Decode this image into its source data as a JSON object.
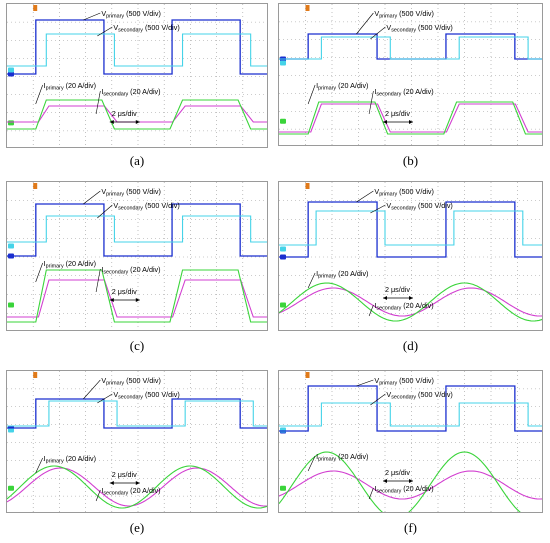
{
  "figure": {
    "panels": [
      {
        "id": "a",
        "caption": "(a)",
        "vp_label": {
          "main": "V",
          "sub": "primary",
          "suffix": " (500 V/div)"
        },
        "vs_label": {
          "main": "V",
          "sub": "secondary",
          "suffix": " (500 V/div)"
        },
        "ip_label": {
          "main": "I",
          "sub": "primary",
          "suffix": " (20 A/div)"
        },
        "is_label": {
          "main": "I",
          "sub": "secondary",
          "suffix": " (20 A/div)"
        },
        "timebase": "2 μs/div"
      },
      {
        "id": "b",
        "caption": "(b)",
        "vp_label": {
          "main": "V",
          "sub": "primary",
          "suffix": " (500 V/div)"
        },
        "vs_label": {
          "main": "V",
          "sub": "secondary",
          "suffix": " (500 V/div)"
        },
        "ip_label": {
          "main": "I",
          "sub": "primary",
          "suffix": " (20 A/div)"
        },
        "is_label": {
          "main": "I",
          "sub": "secondary",
          "suffix": " (20 A/div)"
        },
        "timebase": "2 μs/div"
      },
      {
        "id": "c",
        "caption": "(c)",
        "vp_label": {
          "main": "V",
          "sub": "primary",
          "suffix": " (500 V/div)"
        },
        "vs_label": {
          "main": "V",
          "sub": "secondary",
          "suffix": " (500 V/div)"
        },
        "ip_label": {
          "main": "I",
          "sub": "primary",
          "suffix": " (20 A/div)"
        },
        "is_label": {
          "main": "I",
          "sub": "secondary",
          "suffix": " (20 A/div)"
        },
        "timebase": "2 μs/div"
      },
      {
        "id": "d",
        "caption": "(d)",
        "vp_label": {
          "main": "V",
          "sub": "primary",
          "suffix": " (500 V/div)"
        },
        "vs_label": {
          "main": "V",
          "sub": "secondary",
          "suffix": " (500 V/div)"
        },
        "ip_label": {
          "main": "I",
          "sub": "primary",
          "suffix": " (20 A/div)"
        },
        "is_label": {
          "main": "I",
          "sub": "secondary",
          "suffix": " (20 A/div)"
        },
        "timebase": "2 μs/div"
      },
      {
        "id": "e",
        "caption": "(e)",
        "vp_label": {
          "main": "V",
          "sub": "primary",
          "suffix": " (500 V/div)"
        },
        "vs_label": {
          "main": "V",
          "sub": "secondary",
          "suffix": " (500 V/div)"
        },
        "ip_label": {
          "main": "I",
          "sub": "primary",
          "suffix": " (20 A/div)"
        },
        "is_label": {
          "main": "I",
          "sub": "secondary",
          "suffix": " (20 A/div)"
        },
        "timebase": "2 μs/div"
      },
      {
        "id": "f",
        "caption": "(f)",
        "vp_label": {
          "main": "V",
          "sub": "primary",
          "suffix": " (500 V/div)"
        },
        "vs_label": {
          "main": "V",
          "sub": "secondary",
          "suffix": " (500 V/div)"
        },
        "ip_label": {
          "main": "I",
          "sub": "primary",
          "suffix": " (20 A/div)"
        },
        "is_label": {
          "main": "I",
          "sub": "secondary",
          "suffix": " (20 A/div)"
        },
        "timebase": "2 μs/div"
      }
    ]
  },
  "colors": {
    "v_primary": "#1a2fcf",
    "v_secondary": "#45d3e8",
    "i_primary": "#d23fd0",
    "i_secondary": "#3ad43a",
    "grid": "#9a9a9a",
    "border": "#8c8c8c"
  },
  "chart_data": [
    {
      "type": "line",
      "panel": "a",
      "x_divisions": 10,
      "y_divisions": 8,
      "grid": true,
      "series": [
        {
          "name": "Vprimary",
          "unit_per_div": "500 V/div"
        },
        {
          "name": "Vsecondary",
          "unit_per_div": "500 V/div"
        },
        {
          "name": "Iprimary",
          "unit_per_div": "20 A/div"
        },
        {
          "name": "Isecondary",
          "unit_per_div": "20 A/div"
        }
      ],
      "current_shape": "trapezoid"
    },
    {
      "type": "line",
      "panel": "b",
      "x_divisions": 10,
      "y_divisions": 8,
      "grid": true,
      "series": [
        {
          "name": "Vprimary",
          "unit_per_div": "500 V/div"
        },
        {
          "name": "Vsecondary",
          "unit_per_div": "500 V/div"
        },
        {
          "name": "Iprimary",
          "unit_per_div": "20 A/div"
        },
        {
          "name": "Isecondary",
          "unit_per_div": "20 A/div"
        }
      ],
      "current_shape": "trapezoid"
    },
    {
      "type": "line",
      "panel": "c",
      "x_divisions": 10,
      "y_divisions": 8,
      "grid": true,
      "series": [
        {
          "name": "Vprimary",
          "unit_per_div": "500 V/div"
        },
        {
          "name": "Vsecondary",
          "unit_per_div": "500 V/div"
        },
        {
          "name": "Iprimary",
          "unit_per_div": "20 A/div"
        },
        {
          "name": "Isecondary",
          "unit_per_div": "20 A/div"
        }
      ],
      "current_shape": "trapezoid"
    },
    {
      "type": "line",
      "panel": "d",
      "x_divisions": 10,
      "y_divisions": 8,
      "grid": true,
      "series": [
        {
          "name": "Vprimary",
          "unit_per_div": "500 V/div"
        },
        {
          "name": "Vsecondary",
          "unit_per_div": "500 V/div"
        },
        {
          "name": "Iprimary",
          "unit_per_div": "20 A/div"
        },
        {
          "name": "Isecondary",
          "unit_per_div": "20 A/div"
        }
      ],
      "current_shape": "sinusoid"
    },
    {
      "type": "line",
      "panel": "e",
      "x_divisions": 10,
      "y_divisions": 8,
      "grid": true,
      "series": [
        {
          "name": "Vprimary",
          "unit_per_div": "500 V/div"
        },
        {
          "name": "Vsecondary",
          "unit_per_div": "500 V/div"
        },
        {
          "name": "Iprimary",
          "unit_per_div": "20 A/div"
        },
        {
          "name": "Isecondary",
          "unit_per_div": "20 A/div"
        }
      ],
      "current_shape": "sinusoid"
    },
    {
      "type": "line",
      "panel": "f",
      "x_divisions": 10,
      "y_divisions": 8,
      "grid": true,
      "series": [
        {
          "name": "Vprimary",
          "unit_per_div": "500 V/div"
        },
        {
          "name": "Vsecondary",
          "unit_per_div": "500 V/div"
        },
        {
          "name": "Iprimary",
          "unit_per_div": "20 A/div"
        },
        {
          "name": "Isecondary",
          "unit_per_div": "20 A/div"
        }
      ],
      "current_shape": "sinusoid"
    }
  ]
}
